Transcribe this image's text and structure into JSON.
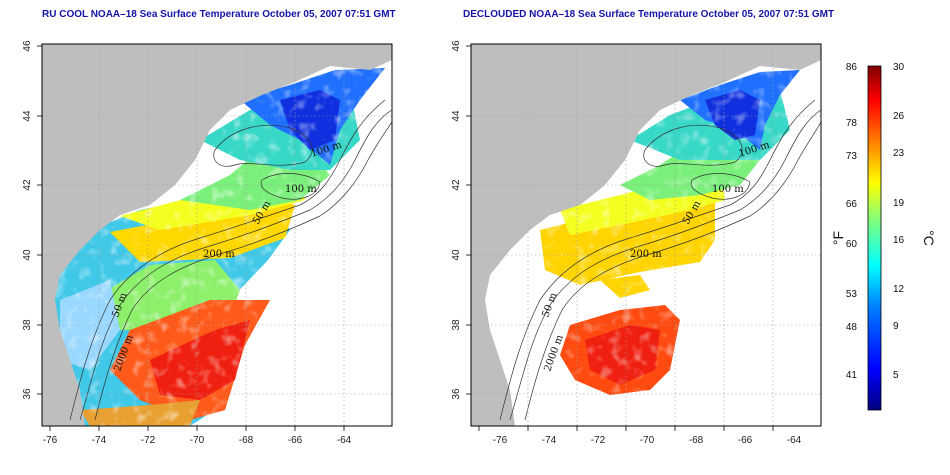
{
  "titles": {
    "left": "RU COOL NOAA–18 Sea Surface Temperature October 05, 2007 07:51 GMT",
    "right": "DECLOUDED NOAA–18 Sea Surface Temperature October 05, 2007 07:51 GMT"
  },
  "axes": {
    "lon_ticks": [
      "-76",
      "-74",
      "-72",
      "-70",
      "-68",
      "-66",
      "-64"
    ],
    "lat_ticks": [
      "46",
      "44",
      "42",
      "40",
      "38",
      "36"
    ],
    "lon_range": [
      -77.2,
      -62.8
    ],
    "lat_range": [
      35,
      46
    ]
  },
  "contour_labels": {
    "left": [
      "100 m",
      "100 m",
      "50 m",
      "200 m",
      "50 m",
      "2000 m"
    ],
    "right": [
      "100 m",
      "100 m",
      "50 m",
      "200 m",
      "50 m",
      "2000 m"
    ]
  },
  "colorbar": {
    "fahrenheit_ticks": [
      "86",
      "78",
      "73",
      "66",
      "60",
      "53",
      "48",
      "41"
    ],
    "celsius_ticks": [
      "30",
      "26",
      "23",
      "19",
      "16",
      "12",
      "9",
      "5"
    ],
    "fahrenheit_unit": "°F",
    "celsius_unit": "°C",
    "range_celsius": [
      2,
      30
    ],
    "colors": [
      "#00007f",
      "#0000ff",
      "#007fff",
      "#00ffff",
      "#7fff7f",
      "#ffff00",
      "#ff7f00",
      "#ff0000",
      "#7f0000"
    ]
  },
  "colors": {
    "land": "#bebebe",
    "no_data": "#ffffff",
    "title": "#1414a8"
  }
}
